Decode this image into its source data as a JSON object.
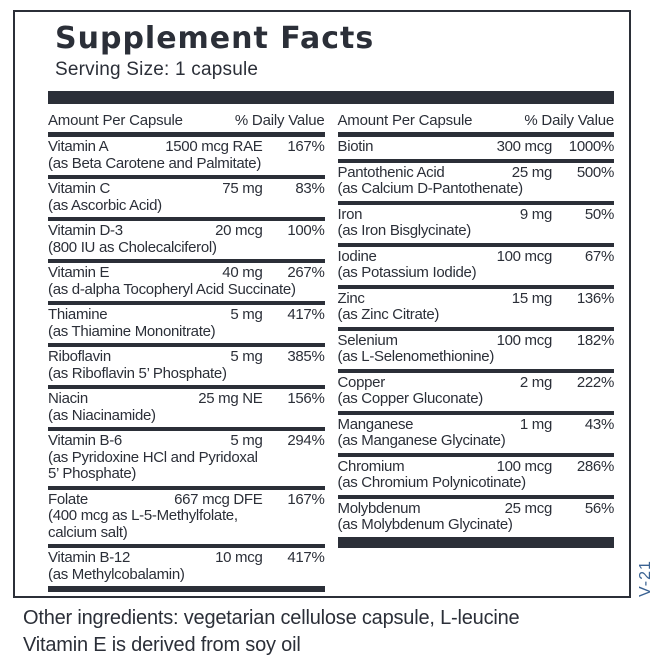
{
  "colors": {
    "ink": "#2b2f38",
    "version_blue": "#3a6292"
  },
  "facts": {
    "title": "Supplement Facts",
    "serving": "Serving Size: 1 capsule",
    "header": {
      "amount": "Amount Per Capsule",
      "dv": "% Daily Value"
    },
    "left_rows": [
      {
        "name": "Vitamin A",
        "amount": "1500 mcg RAE",
        "dv": "167%",
        "sub": "(as Beta Carotene and Palmitate)"
      },
      {
        "name": "Vitamin C",
        "amount": "75 mg",
        "dv": "83%",
        "sub": "(as Ascorbic Acid)"
      },
      {
        "name": "Vitamin D-3",
        "amount": "20 mcg",
        "dv": "100%",
        "sub": "(800 IU as Cholecalciferol)"
      },
      {
        "name": "Vitamin E",
        "amount": "40 mg",
        "dv": "267%",
        "sub": "(as d-alpha Tocopheryl Acid Succinate)"
      },
      {
        "name": "Thiamine",
        "amount": "5 mg",
        "dv": "417%",
        "sub": "(as Thiamine Mononitrate)"
      },
      {
        "name": "Riboflavin",
        "amount": "5 mg",
        "dv": "385%",
        "sub": "(as Riboflavin 5’ Phosphate)"
      },
      {
        "name": "Niacin",
        "amount": "25 mg NE",
        "dv": "156%",
        "sub": "(as Niacinamide)"
      },
      {
        "name": "Vitamin B-6",
        "amount": "5 mg",
        "dv": "294%",
        "sub": "(as Pyridoxine HCl and Pyridoxal\n5’ Phosphate)"
      },
      {
        "name": "Folate",
        "amount": "667 mcg DFE",
        "dv": "167%",
        "sub": "(400 mcg as L-5-Methylfolate,\ncalcium salt)"
      },
      {
        "name": "Vitamin B-12",
        "amount": "10 mcg",
        "dv": "417%",
        "sub": "(as Methylcobalamin)"
      }
    ],
    "right_rows": [
      {
        "name": "Biotin",
        "amount": "300 mcg",
        "dv": "1000%",
        "sub": ""
      },
      {
        "name": "Pantothenic Acid",
        "amount": "25 mg",
        "dv": "500%",
        "sub": "(as Calcium D-Pantothenate)"
      },
      {
        "name": "Iron",
        "amount": "9 mg",
        "dv": "50%",
        "sub": "(as Iron Bisglycinate)"
      },
      {
        "name": "Iodine",
        "amount": "100 mcg",
        "dv": "67%",
        "sub": "(as Potassium Iodide)"
      },
      {
        "name": "Zinc",
        "amount": "15 mg",
        "dv": "136%",
        "sub": "(as Zinc Citrate)"
      },
      {
        "name": "Selenium",
        "amount": "100 mcg",
        "dv": "182%",
        "sub": "(as L-Selenomethionine)"
      },
      {
        "name": "Copper",
        "amount": "2 mg",
        "dv": "222%",
        "sub": "(as Copper Gluconate)"
      },
      {
        "name": "Manganese",
        "amount": "1 mg",
        "dv": "43%",
        "sub": "(as Manganese Glycinate)"
      },
      {
        "name": "Chromium",
        "amount": "100 mcg",
        "dv": "286%",
        "sub": "(as Chromium Polynicotinate)"
      },
      {
        "name": "Molybdenum",
        "amount": "25 mcg",
        "dv": "56%",
        "sub": "(as Molybdenum Glycinate)"
      }
    ],
    "version_code": "V-21",
    "footer_line1": "Other ingredients: vegetarian cellulose capsule, L-leucine",
    "footer_line2": "Vitamin E is derived from soy oil"
  }
}
